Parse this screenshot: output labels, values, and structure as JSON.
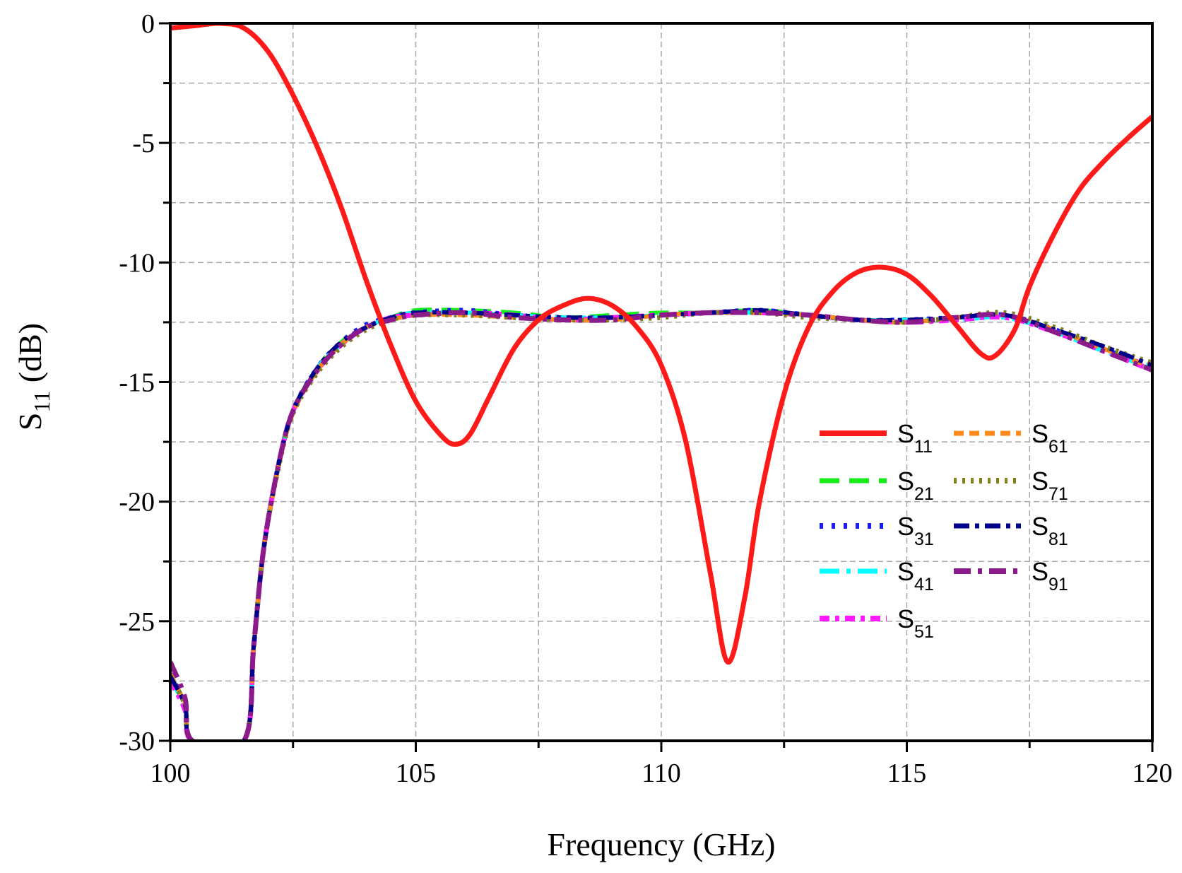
{
  "chart_data": {
    "type": "line",
    "xlabel": "Frequency (GHz)",
    "ylabel_main": "S",
    "ylabel_sub": "11",
    "ylabel_unit": " (dB)",
    "xlim": [
      100,
      120
    ],
    "ylim": [
      -30,
      0
    ],
    "xticks": [
      100,
      105,
      110,
      115,
      120
    ],
    "yticks": [
      0,
      -5,
      -10,
      -15,
      -20,
      -25,
      -30
    ],
    "grid": true,
    "legend_position": "center-right",
    "series": [
      {
        "name": "S11",
        "main": "S",
        "sub": "11",
        "color": "#ff1a1a",
        "dash": "solid",
        "width": 7,
        "points": [
          [
            100,
            -0.2
          ],
          [
            100.5,
            -0.1
          ],
          [
            101,
            0
          ],
          [
            101.5,
            -0.2
          ],
          [
            102,
            -1.2
          ],
          [
            102.5,
            -3
          ],
          [
            103,
            -5.2
          ],
          [
            103.5,
            -7.8
          ],
          [
            104,
            -10.8
          ],
          [
            104.5,
            -13.5
          ],
          [
            105,
            -15.8
          ],
          [
            105.5,
            -17.2
          ],
          [
            105.8,
            -17.6
          ],
          [
            106.1,
            -17.2
          ],
          [
            106.5,
            -15.6
          ],
          [
            107,
            -13.6
          ],
          [
            107.5,
            -12.4
          ],
          [
            108,
            -11.8
          ],
          [
            108.5,
            -11.5
          ],
          [
            109,
            -11.8
          ],
          [
            109.5,
            -12.7
          ],
          [
            110,
            -14.3
          ],
          [
            110.5,
            -17.5
          ],
          [
            111,
            -23
          ],
          [
            111.35,
            -26.7
          ],
          [
            111.7,
            -24
          ],
          [
            112,
            -20
          ],
          [
            112.5,
            -15.5
          ],
          [
            113,
            -12.7
          ],
          [
            113.5,
            -11.2
          ],
          [
            114,
            -10.4
          ],
          [
            114.5,
            -10.2
          ],
          [
            115,
            -10.5
          ],
          [
            115.5,
            -11.4
          ],
          [
            116,
            -12.6
          ],
          [
            116.5,
            -13.8
          ],
          [
            116.8,
            -13.9
          ],
          [
            117.2,
            -12.8
          ],
          [
            117.5,
            -11
          ],
          [
            118,
            -8.8
          ],
          [
            118.5,
            -7
          ],
          [
            119,
            -5.8
          ],
          [
            119.5,
            -4.8
          ],
          [
            120,
            -3.9
          ]
        ]
      },
      {
        "name": "S21",
        "main": "S",
        "sub": "21",
        "color": "#1aee1a",
        "dash": "28,14",
        "width": 6,
        "points": [
          [
            100,
            -27.3
          ],
          [
            100.3,
            -28.5
          ],
          [
            100.45,
            -30
          ],
          [
            101.5,
            -30
          ],
          [
            101.7,
            -26
          ],
          [
            101.9,
            -22
          ],
          [
            102.2,
            -18.5
          ],
          [
            102.5,
            -16.2
          ],
          [
            103,
            -14.4
          ],
          [
            103.5,
            -13.3
          ],
          [
            104,
            -12.7
          ],
          [
            104.5,
            -12.3
          ],
          [
            105,
            -12
          ],
          [
            106,
            -12
          ],
          [
            107,
            -12.1
          ],
          [
            108,
            -12.3
          ],
          [
            109,
            -12.2
          ],
          [
            110,
            -12.1
          ],
          [
            111,
            -12.1
          ],
          [
            112,
            -12
          ],
          [
            113,
            -12.2
          ],
          [
            114,
            -12.4
          ],
          [
            115,
            -12.5
          ],
          [
            116,
            -12.3
          ],
          [
            117,
            -12.2
          ],
          [
            118,
            -12.8
          ],
          [
            119,
            -13.6
          ],
          [
            120,
            -14.5
          ]
        ]
      },
      {
        "name": "S31",
        "main": "S",
        "sub": "31",
        "color": "#1a1aff",
        "dash": "5,12",
        "width": 7,
        "points": [
          [
            100,
            -27.2
          ],
          [
            100.3,
            -28.5
          ],
          [
            100.45,
            -30
          ],
          [
            101.5,
            -30
          ],
          [
            101.7,
            -26
          ],
          [
            101.9,
            -22
          ],
          [
            102.2,
            -18.5
          ],
          [
            102.5,
            -16.2
          ],
          [
            103,
            -14.4
          ],
          [
            103.5,
            -13.3
          ],
          [
            104,
            -12.6
          ],
          [
            104.5,
            -12.3
          ],
          [
            105,
            -12.1
          ],
          [
            106,
            -12
          ],
          [
            107,
            -12.2
          ],
          [
            108,
            -12.3
          ],
          [
            109,
            -12.3
          ],
          [
            110,
            -12.2
          ],
          [
            111,
            -12.1
          ],
          [
            112,
            -12
          ],
          [
            113,
            -12.2
          ],
          [
            114,
            -12.4
          ],
          [
            115,
            -12.4
          ],
          [
            116,
            -12.3
          ],
          [
            117,
            -12.2
          ],
          [
            118,
            -12.8
          ],
          [
            119,
            -13.6
          ],
          [
            120,
            -14.4
          ]
        ]
      },
      {
        "name": "S41",
        "main": "S",
        "sub": "41",
        "color": "#00ffff",
        "dash": "28,10,6,10",
        "width": 6,
        "points": [
          [
            100,
            -27.4
          ],
          [
            100.3,
            -28.6
          ],
          [
            100.45,
            -30
          ],
          [
            101.5,
            -30
          ],
          [
            101.7,
            -26
          ],
          [
            101.9,
            -22
          ],
          [
            102.2,
            -18.5
          ],
          [
            102.5,
            -16.2
          ],
          [
            103,
            -14.4
          ],
          [
            103.5,
            -13.4
          ],
          [
            104,
            -12.7
          ],
          [
            104.5,
            -12.3
          ],
          [
            105,
            -12.1
          ],
          [
            106,
            -12.1
          ],
          [
            107,
            -12.2
          ],
          [
            108,
            -12.3
          ],
          [
            109,
            -12.3
          ],
          [
            110,
            -12.2
          ],
          [
            111,
            -12.1
          ],
          [
            112,
            -12.1
          ],
          [
            113,
            -12.2
          ],
          [
            114,
            -12.4
          ],
          [
            115,
            -12.4
          ],
          [
            116,
            -12.4
          ],
          [
            117,
            -12.3
          ],
          [
            118,
            -12.9
          ],
          [
            119,
            -13.7
          ],
          [
            120,
            -14.4
          ]
        ]
      },
      {
        "name": "S51",
        "main": "S",
        "sub": "51",
        "color": "#ff1aff",
        "dash": "14,8,6,8",
        "width": 7,
        "points": [
          [
            100,
            -27.5
          ],
          [
            100.3,
            -28.7
          ],
          [
            100.45,
            -30
          ],
          [
            101.5,
            -30
          ],
          [
            101.7,
            -26
          ],
          [
            101.9,
            -22
          ],
          [
            102.2,
            -18.5
          ],
          [
            102.5,
            -16.2
          ],
          [
            103,
            -14.5
          ],
          [
            103.5,
            -13.4
          ],
          [
            104,
            -12.7
          ],
          [
            104.5,
            -12.3
          ],
          [
            105,
            -12.2
          ],
          [
            106,
            -12.1
          ],
          [
            107,
            -12.2
          ],
          [
            108,
            -12.4
          ],
          [
            109,
            -12.3
          ],
          [
            110,
            -12.2
          ],
          [
            111,
            -12.1
          ],
          [
            112,
            -12.1
          ],
          [
            113,
            -12.2
          ],
          [
            114,
            -12.4
          ],
          [
            115,
            -12.5
          ],
          [
            116,
            -12.4
          ],
          [
            117,
            -12.3
          ],
          [
            118,
            -12.9
          ],
          [
            119,
            -13.7
          ],
          [
            120,
            -14.5
          ]
        ]
      },
      {
        "name": "S61",
        "main": "S",
        "sub": "61",
        "color": "#ff8a1a",
        "dash": "14,8",
        "width": 6,
        "points": [
          [
            100,
            -27.2
          ],
          [
            100.3,
            -28.5
          ],
          [
            100.45,
            -30
          ],
          [
            101.5,
            -30
          ],
          [
            101.7,
            -26
          ],
          [
            101.9,
            -22
          ],
          [
            102.2,
            -18.6
          ],
          [
            102.5,
            -16.3
          ],
          [
            103,
            -14.5
          ],
          [
            103.5,
            -13.4
          ],
          [
            104,
            -12.7
          ],
          [
            104.5,
            -12.4
          ],
          [
            105,
            -12.2
          ],
          [
            106,
            -12.2
          ],
          [
            107,
            -12.3
          ],
          [
            108,
            -12.4
          ],
          [
            109,
            -12.4
          ],
          [
            110,
            -12.2
          ],
          [
            111,
            -12.1
          ],
          [
            112,
            -12.1
          ],
          [
            113,
            -12.2
          ],
          [
            114,
            -12.4
          ],
          [
            115,
            -12.5
          ],
          [
            116,
            -12.3
          ],
          [
            117,
            -12.2
          ],
          [
            118,
            -12.8
          ],
          [
            119,
            -13.6
          ],
          [
            120,
            -14.4
          ]
        ]
      },
      {
        "name": "S71",
        "main": "S",
        "sub": "71",
        "color": "#808020",
        "dash": "4,8",
        "width": 7,
        "points": [
          [
            100,
            -27.3
          ],
          [
            100.3,
            -28.5
          ],
          [
            100.45,
            -30
          ],
          [
            101.5,
            -30
          ],
          [
            101.7,
            -26
          ],
          [
            101.9,
            -22
          ],
          [
            102.2,
            -18.6
          ],
          [
            102.5,
            -16.3
          ],
          [
            103,
            -14.6
          ],
          [
            103.5,
            -13.5
          ],
          [
            104,
            -12.8
          ],
          [
            104.5,
            -12.4
          ],
          [
            105,
            -12.2
          ],
          [
            106,
            -12.2
          ],
          [
            107,
            -12.3
          ],
          [
            108,
            -12.4
          ],
          [
            109,
            -12.4
          ],
          [
            110,
            -12.3
          ],
          [
            111,
            -12.1
          ],
          [
            112,
            -12.1
          ],
          [
            113,
            -12.3
          ],
          [
            114,
            -12.4
          ],
          [
            115,
            -12.5
          ],
          [
            116,
            -12.3
          ],
          [
            117,
            -12.1
          ],
          [
            118,
            -12.7
          ],
          [
            119,
            -13.5
          ],
          [
            120,
            -14.2
          ]
        ]
      },
      {
        "name": "S81",
        "main": "S",
        "sub": "81",
        "color": "#00008b",
        "dash": "22,8,6,8",
        "width": 6,
        "points": [
          [
            100,
            -27.3
          ],
          [
            100.3,
            -28.5
          ],
          [
            100.45,
            -30
          ],
          [
            101.5,
            -30
          ],
          [
            101.7,
            -26
          ],
          [
            101.9,
            -22
          ],
          [
            102.2,
            -18.5
          ],
          [
            102.5,
            -16.2
          ],
          [
            103,
            -14.4
          ],
          [
            103.5,
            -13.3
          ],
          [
            104,
            -12.7
          ],
          [
            104.5,
            -12.3
          ],
          [
            105,
            -12.1
          ],
          [
            106,
            -12.1
          ],
          [
            107,
            -12.2
          ],
          [
            108,
            -12.3
          ],
          [
            109,
            -12.3
          ],
          [
            110,
            -12.2
          ],
          [
            111,
            -12.1
          ],
          [
            112,
            -12
          ],
          [
            113,
            -12.2
          ],
          [
            114,
            -12.4
          ],
          [
            115,
            -12.4
          ],
          [
            116,
            -12.3
          ],
          [
            117,
            -12.2
          ],
          [
            118,
            -12.8
          ],
          [
            119,
            -13.5
          ],
          [
            120,
            -14.3
          ]
        ]
      },
      {
        "name": "S91",
        "main": "S",
        "sub": "91",
        "color": "#8b1a8b",
        "dash": "24,10,6,10",
        "width": 7,
        "points": [
          [
            100,
            -26.7
          ],
          [
            100.3,
            -28.2
          ],
          [
            100.45,
            -30
          ],
          [
            101.5,
            -30
          ],
          [
            101.7,
            -26
          ],
          [
            101.9,
            -22
          ],
          [
            102.2,
            -18.5
          ],
          [
            102.5,
            -16.2
          ],
          [
            103,
            -14.5
          ],
          [
            103.5,
            -13.4
          ],
          [
            104,
            -12.7
          ],
          [
            104.5,
            -12.4
          ],
          [
            105,
            -12.2
          ],
          [
            106,
            -12.1
          ],
          [
            107,
            -12.3
          ],
          [
            108,
            -12.4
          ],
          [
            109,
            -12.4
          ],
          [
            110,
            -12.2
          ],
          [
            111,
            -12.1
          ],
          [
            112,
            -12.1
          ],
          [
            113,
            -12.2
          ],
          [
            114,
            -12.4
          ],
          [
            115,
            -12.5
          ],
          [
            116,
            -12.3
          ],
          [
            117,
            -12.2
          ],
          [
            118,
            -12.9
          ],
          [
            119,
            -13.7
          ],
          [
            120,
            -14.5
          ]
        ]
      }
    ]
  }
}
